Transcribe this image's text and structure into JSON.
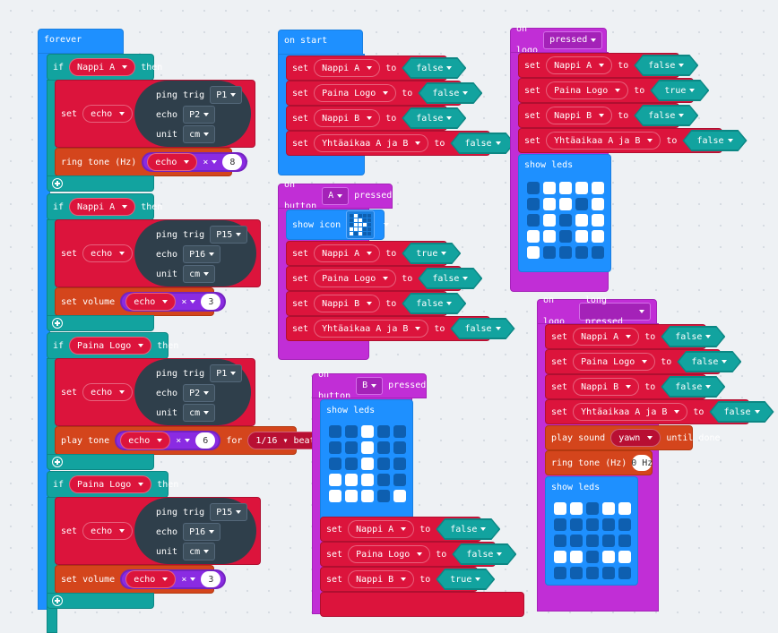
{
  "labels": {
    "forever": "forever",
    "if": "if",
    "then": "then",
    "set": "set",
    "to": "to",
    "ping_trig": "ping trig",
    "echo": "echo",
    "unit": "unit",
    "cm": "cm",
    "ring_tone": "ring tone (Hz)",
    "set_volume": "set volume",
    "play_tone": "play tone",
    "for": "for",
    "beat_116": "1/16 ▾ beat",
    "mult": "×",
    "on_start": "on start",
    "on_logo": "on logo",
    "pressed": "pressed",
    "long_pressed": "long pressed",
    "on_button": "on button",
    "btn_a": "A",
    "btn_b": "B",
    "show_icon": "show icon",
    "show_leds": "show leds",
    "play_sound": "play sound",
    "yawn": "yawn",
    "until_done": "until done",
    "hz0": "0 Hz",
    "true": "true",
    "false": "false"
  },
  "vars": {
    "nappi_a": "Nappi A",
    "nappi_b": "Nappi B",
    "paina_logo": "Paina Logo",
    "yhtaaikaa": "Yhtäaikaa A ja B",
    "echo": "echo"
  },
  "pins": {
    "p1": "P1",
    "p2": "P2",
    "p15": "P15",
    "p16": "P16"
  },
  "numbers": {
    "n8": "8",
    "n3": "3",
    "n6": "6"
  },
  "leds": {
    "logo_pressed": [
      0,
      1,
      1,
      1,
      1,
      0,
      1,
      1,
      0,
      1,
      0,
      1,
      0,
      1,
      1,
      1,
      1,
      0,
      1,
      1,
      1,
      0,
      0,
      0,
      0
    ],
    "button_b": [
      0,
      0,
      1,
      0,
      0,
      0,
      0,
      1,
      0,
      0,
      0,
      0,
      1,
      0,
      0,
      1,
      1,
      1,
      0,
      0,
      1,
      1,
      1,
      0,
      1
    ],
    "logo_long": [
      1,
      1,
      0,
      1,
      1,
      0,
      0,
      0,
      0,
      0,
      0,
      0,
      0,
      0,
      0,
      1,
      1,
      0,
      1,
      1,
      0,
      0,
      0,
      0,
      0
    ],
    "icon_a": [
      0,
      1,
      0,
      0,
      0,
      0,
      1,
      1,
      0,
      0,
      0,
      1,
      1,
      1,
      0,
      1,
      1,
      1,
      0,
      0,
      1,
      0,
      1,
      0,
      0
    ]
  }
}
